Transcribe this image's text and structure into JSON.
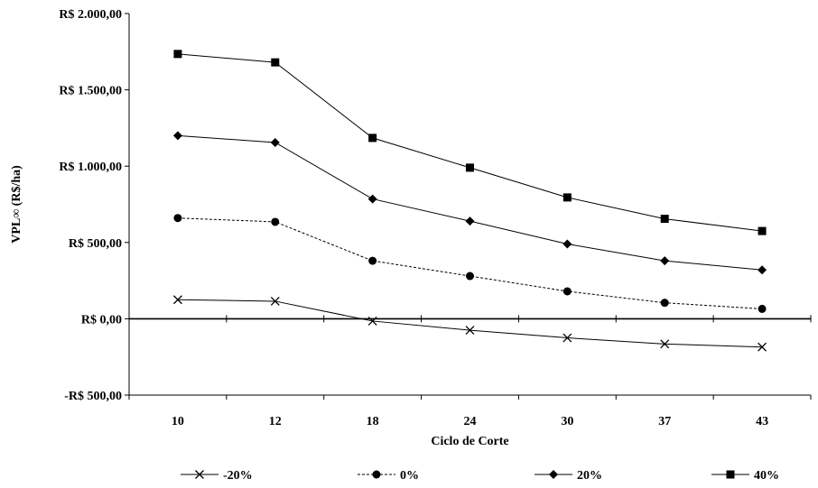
{
  "chart_data": {
    "type": "line",
    "xlabel": "Ciclo de Corte",
    "ylabel": "VPL∞ (R$/ha)",
    "categories": [
      "10",
      "12",
      "18",
      "24",
      "30",
      "37",
      "43"
    ],
    "ylim": [
      -500,
      2000
    ],
    "yticks": [
      -500,
      0,
      500,
      1000,
      1500,
      2000
    ],
    "ytick_labels": [
      "-R$ 500,00",
      "R$ 0,00",
      "R$ 500,00",
      "R$ 1.000,00",
      "R$ 1.500,00",
      "R$ 2.000,00"
    ],
    "grid": false,
    "legend_position": "bottom",
    "series": [
      {
        "name": "-20%",
        "marker": "x",
        "line": "solid",
        "values": [
          125,
          115,
          -15,
          -75,
          -125,
          -165,
          -185
        ]
      },
      {
        "name": "0%",
        "marker": "circle",
        "line": "dashed",
        "values": [
          660,
          635,
          380,
          280,
          180,
          105,
          65
        ]
      },
      {
        "name": "20%",
        "marker": "diamond",
        "line": "solid",
        "values": [
          1200,
          1155,
          785,
          640,
          490,
          380,
          320
        ]
      },
      {
        "name": "40%",
        "marker": "square",
        "line": "solid",
        "values": [
          1735,
          1680,
          1185,
          990,
          795,
          655,
          575
        ]
      }
    ]
  }
}
